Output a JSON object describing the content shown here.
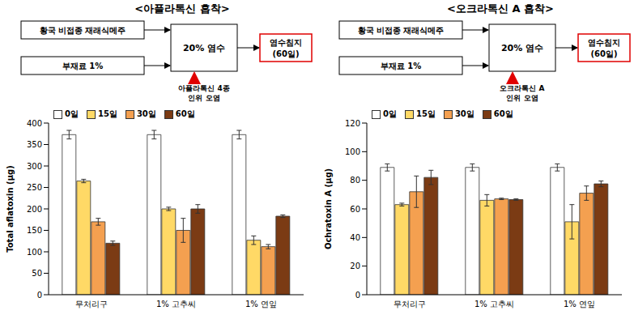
{
  "chart_data": [
    {
      "type": "bar",
      "title": "<아플라톡신 흡착>",
      "y_label": "Total aflatoxin (μg)",
      "categories": [
        "무처리구",
        "1% 고추씨",
        "1% 연잎"
      ],
      "series": [
        {
          "name": "0일",
          "color": "#ffffff",
          "values": [
            373,
            373,
            373
          ],
          "errors": [
            10,
            10,
            10
          ]
        },
        {
          "name": "15일",
          "color": "#ffd966",
          "values": [
            265,
            200,
            127
          ],
          "errors": [
            4,
            4,
            10
          ]
        },
        {
          "name": "30일",
          "color": "#f4a050",
          "values": [
            170,
            150,
            112
          ],
          "errors": [
            8,
            28,
            5
          ]
        },
        {
          "name": "60일",
          "color": "#7b3b14",
          "values": [
            120,
            200,
            183
          ],
          "errors": [
            5,
            10,
            3
          ]
        }
      ],
      "ylim": [
        0,
        400
      ],
      "yticks": [
        0,
        50,
        100,
        150,
        200,
        250,
        300,
        350,
        400
      ],
      "grid": false,
      "legend": "top"
    },
    {
      "type": "bar",
      "title": "<오크라톡신 A 흡착>",
      "y_label": "Ochratoxin A (μg)",
      "categories": [
        "무처리구",
        "1% 고추씨",
        "1% 연잎"
      ],
      "series": [
        {
          "name": "0일",
          "color": "#ffffff",
          "values": [
            89,
            89,
            89
          ],
          "errors": [
            2.5,
            2.5,
            2.5
          ]
        },
        {
          "name": "15일",
          "color": "#ffd966",
          "values": [
            63,
            66,
            51
          ],
          "errors": [
            1,
            4,
            12
          ]
        },
        {
          "name": "30일",
          "color": "#f4a050",
          "values": [
            72,
            67,
            71
          ],
          "errors": [
            11,
            0.5,
            5
          ]
        },
        {
          "name": "60일",
          "color": "#7b3b14",
          "values": [
            82,
            66.5,
            77.5
          ],
          "errors": [
            5,
            0.5,
            2
          ]
        }
      ],
      "ylim": [
        0,
        120
      ],
      "yticks": [
        0,
        20,
        40,
        60,
        80,
        100,
        120
      ],
      "grid": false,
      "legend": "top"
    }
  ],
  "diagrams": [
    {
      "source": "황국 비접종 재래식메주",
      "additive": "부재료 1%",
      "brine": "20% 염수",
      "result": [
        "염수침지",
        "(60일)"
      ],
      "contamination": [
        "아플라톡신 4종",
        "인위 오염"
      ]
    },
    {
      "source": "황국 비접종 재래식메주",
      "additive": "부재료 1%",
      "brine": "20% 염수",
      "result": [
        "염수침지",
        "(60일)"
      ],
      "contamination": [
        "오크라톡신 A",
        "인위 오염"
      ]
    }
  ]
}
